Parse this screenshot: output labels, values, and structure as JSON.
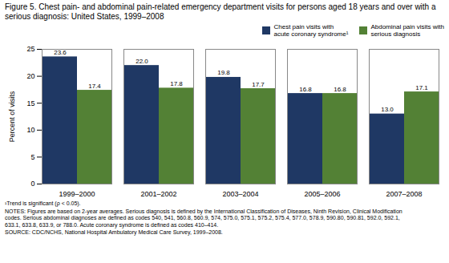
{
  "chart_data": {
    "type": "bar",
    "title": "Figure 5. Chest pain- and abdominal pain-related emergency department visits for persons aged 18 years and over with a\nserious diagnosis: United States, 1999–2008",
    "categories": [
      "1999–2000",
      "2001–2002",
      "2003–2004",
      "2005–2006",
      "2007–2008"
    ],
    "series": [
      {
        "name": "Chest pain visits with\nacute coronary syndrome¹",
        "color": "#1f3864",
        "values": [
          23.6,
          22.0,
          19.8,
          16.8,
          13.0
        ],
        "value_labels": [
          "23.6",
          "22.0",
          "19.8",
          "16.8",
          "13.0"
        ]
      },
      {
        "name": "Abdominal pain visits with\nserious diagnosis",
        "color": "#538135",
        "values": [
          17.4,
          17.8,
          17.7,
          16.8,
          17.1
        ],
        "value_labels": [
          "17.4",
          "17.8",
          "17.7",
          "16.8",
          "17.1"
        ]
      }
    ],
    "ylabel": "Percent of visits",
    "ylim": [
      0,
      25
    ],
    "yticks": [
      0,
      5,
      10,
      15,
      20,
      25
    ],
    "grid": false,
    "legend": "upper right",
    "data_labels": true,
    "annotations": [
      "¹Trend is significant (ρ < 0.05).",
      "NOTES: Figures are based on 2-year averages. Serious diagnosis is defined by the International Classification of Diseases, Ninth Revision, Clinical Modification\ncodes. Serious abdominal diagnoses are defined as codes 540, 541, 560.8, 560.9, 574, 575.0, 575.1, 575.2, 575.4, 577.0, 578.9, 590.80, 590.81, 592.0, 592.1,\n633.1, 633.8, 633.9, or 788.0. Acute coronary syndrome is defined as codes 410–414.",
      "SOURCE: CDC/NCHS, National Hospital Ambulatory Medical Care Survey, 1999–2008."
    ]
  }
}
